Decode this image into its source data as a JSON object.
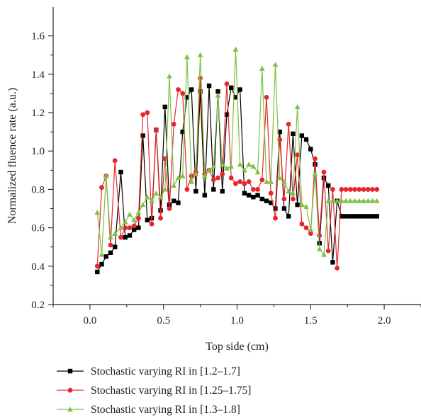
{
  "chart_data": {
    "type": "line",
    "xlabel": "Top side (cm)",
    "ylabel": "Normalized fluence rate (a.u.)",
    "xlim": [
      -0.25,
      2.25
    ],
    "ylim": [
      0.2,
      1.75
    ],
    "xticks": [
      0.0,
      0.5,
      1.0,
      1.5,
      2.0
    ],
    "xtick_labels": [
      "0.0",
      "0.5",
      "1.0",
      "1.5",
      "2.0"
    ],
    "yticks": [
      0.2,
      0.4,
      0.6,
      0.8,
      1.0,
      1.2,
      1.4,
      1.6
    ],
    "ytick_labels": [
      "0.2",
      "0.4",
      "0.6",
      "0.8",
      "1.0",
      "1.2",
      "1.4",
      "1.6"
    ],
    "grid": false,
    "legend_position": "bottom",
    "series": [
      {
        "name": "Stochastic varying RI in [1.2–1.7]",
        "color": "#000000",
        "marker": "square",
        "x": [
          0.05,
          0.08,
          0.11,
          0.14,
          0.17,
          0.21,
          0.24,
          0.27,
          0.3,
          0.33,
          0.36,
          0.39,
          0.42,
          0.45,
          0.48,
          0.51,
          0.54,
          0.57,
          0.6,
          0.63,
          0.66,
          0.69,
          0.72,
          0.75,
          0.78,
          0.81,
          0.84,
          0.87,
          0.9,
          0.93,
          0.96,
          0.99,
          1.02,
          1.05,
          1.08,
          1.11,
          1.14,
          1.17,
          1.2,
          1.23,
          1.26,
          1.29,
          1.32,
          1.35,
          1.38,
          1.41,
          1.44,
          1.47,
          1.5,
          1.53,
          1.56,
          1.59,
          1.62,
          1.65,
          1.68,
          1.71,
          1.74,
          1.77,
          1.8,
          1.83,
          1.86,
          1.89,
          1.92,
          1.95
        ],
        "values": [
          0.37,
          0.41,
          0.45,
          0.47,
          0.5,
          0.89,
          0.55,
          0.56,
          0.59,
          0.6,
          1.08,
          0.64,
          0.65,
          1.11,
          0.69,
          1.23,
          0.72,
          0.74,
          0.73,
          1.1,
          1.28,
          1.32,
          0.79,
          1.31,
          0.77,
          1.34,
          0.8,
          1.31,
          0.79,
          1.19,
          1.33,
          1.28,
          1.32,
          0.78,
          0.77,
          0.76,
          0.77,
          0.75,
          0.74,
          0.73,
          0.7,
          1.1,
          0.7,
          0.66,
          1.09,
          0.72,
          1.08,
          1.06,
          1.01,
          0.93,
          0.52,
          0.86,
          0.82,
          0.42,
          0.74,
          0.66,
          0.66,
          0.66,
          0.66,
          0.66,
          0.66,
          0.66,
          0.66,
          0.66
        ]
      },
      {
        "name": "Stochastic varying RI in [1.25–1.75]",
        "color": "#e8262a",
        "marker": "circle",
        "x": [
          0.05,
          0.08,
          0.11,
          0.14,
          0.17,
          0.21,
          0.24,
          0.27,
          0.3,
          0.33,
          0.36,
          0.39,
          0.42,
          0.45,
          0.48,
          0.51,
          0.54,
          0.57,
          0.6,
          0.63,
          0.66,
          0.69,
          0.72,
          0.75,
          0.78,
          0.81,
          0.84,
          0.87,
          0.9,
          0.93,
          0.96,
          0.99,
          1.02,
          1.05,
          1.08,
          1.11,
          1.14,
          1.17,
          1.2,
          1.23,
          1.26,
          1.29,
          1.32,
          1.35,
          1.38,
          1.41,
          1.44,
          1.47,
          1.5,
          1.53,
          1.56,
          1.59,
          1.62,
          1.65,
          1.68,
          1.71,
          1.74,
          1.77,
          1.8,
          1.83,
          1.86,
          1.89,
          1.92,
          1.95
        ],
        "values": [
          0.4,
          0.81,
          0.87,
          0.51,
          0.95,
          0.55,
          0.6,
          0.6,
          0.61,
          0.65,
          1.19,
          1.2,
          0.62,
          1.11,
          0.65,
          0.96,
          0.7,
          1.14,
          1.32,
          1.3,
          0.8,
          0.87,
          0.89,
          1.38,
          0.88,
          0.9,
          0.85,
          0.86,
          0.88,
          1.35,
          0.86,
          0.83,
          0.84,
          0.83,
          0.84,
          0.8,
          0.8,
          0.85,
          1.28,
          0.78,
          0.65,
          1.06,
          0.75,
          1.14,
          0.75,
          0.98,
          0.62,
          0.6,
          0.57,
          0.96,
          0.56,
          0.89,
          0.48,
          0.8,
          0.39,
          0.8,
          0.8,
          0.8,
          0.8,
          0.8,
          0.8,
          0.8,
          0.8,
          0.8
        ]
      },
      {
        "name": "Stochastic varying RI in [1.3–1.8]",
        "color": "#7cc243",
        "marker": "triangle",
        "x": [
          0.05,
          0.08,
          0.11,
          0.14,
          0.17,
          0.21,
          0.24,
          0.27,
          0.3,
          0.33,
          0.36,
          0.39,
          0.42,
          0.45,
          0.48,
          0.51,
          0.54,
          0.57,
          0.6,
          0.63,
          0.66,
          0.69,
          0.72,
          0.75,
          0.78,
          0.81,
          0.84,
          0.87,
          0.9,
          0.93,
          0.96,
          0.99,
          1.02,
          1.05,
          1.08,
          1.11,
          1.14,
          1.17,
          1.2,
          1.23,
          1.26,
          1.29,
          1.32,
          1.35,
          1.38,
          1.41,
          1.44,
          1.47,
          1.5,
          1.53,
          1.56,
          1.59,
          1.62,
          1.65,
          1.68,
          1.71,
          1.74,
          1.77,
          1.8,
          1.83,
          1.86,
          1.89,
          1.92,
          1.95
        ],
        "values": [
          0.68,
          0.46,
          0.87,
          0.55,
          0.57,
          0.6,
          0.63,
          0.67,
          0.64,
          0.68,
          0.72,
          0.76,
          0.74,
          0.78,
          0.76,
          0.8,
          1.39,
          0.82,
          0.86,
          0.87,
          1.49,
          0.84,
          0.88,
          1.5,
          0.87,
          0.9,
          0.92,
          1.29,
          0.93,
          0.91,
          0.92,
          1.53,
          0.93,
          0.9,
          0.93,
          0.92,
          0.89,
          1.43,
          0.84,
          0.84,
          1.45,
          0.86,
          0.84,
          0.79,
          0.78,
          1.23,
          0.72,
          0.71,
          0.59,
          0.88,
          0.49,
          0.46,
          0.74,
          0.74,
          0.74,
          0.74,
          0.74,
          0.74,
          0.74,
          0.74,
          0.74,
          0.74,
          0.74,
          0.74
        ]
      }
    ]
  }
}
